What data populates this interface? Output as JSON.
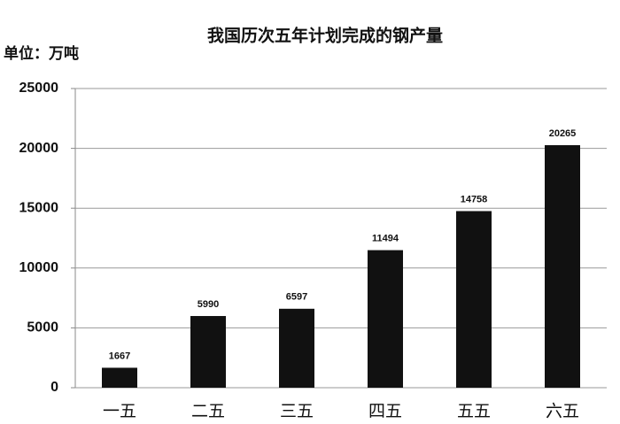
{
  "chart_data": {
    "type": "bar",
    "title": "我国历次五年计划完成的钢产量",
    "y_label": "单位：万吨",
    "categories": [
      "一五",
      "二五",
      "三五",
      "四五",
      "五五",
      "六五"
    ],
    "values": [
      1667,
      5990,
      6597,
      11494,
      14758,
      20265
    ],
    "color": "#111111",
    "ylim": [
      0,
      25000
    ],
    "yticks": [
      0,
      5000,
      10000,
      15000,
      20000,
      25000
    ],
    "grid": true
  }
}
